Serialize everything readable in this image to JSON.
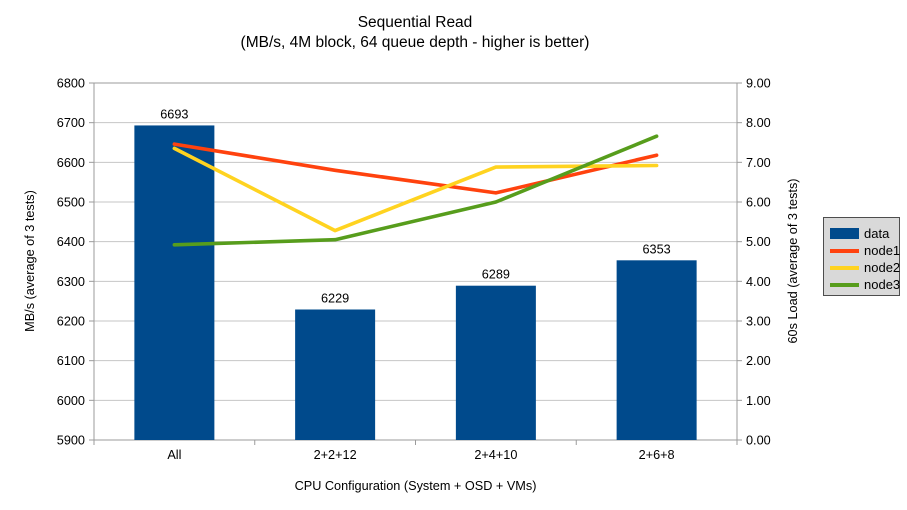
{
  "chart_data": {
    "type": "combo-bar-line",
    "title": "Sequential Read",
    "subtitle": "(MB/s, 4M block, 64 queue depth - higher is better)",
    "xlabel": "CPU Configuration (System + OSD + VMs)",
    "categories": [
      "All",
      "2+2+12",
      "2+4+10",
      "2+6+8"
    ],
    "left_axis": {
      "label": "MB/s (average of 3 tests)",
      "min": 5900,
      "max": 6800,
      "step": 100,
      "tick_labels": [
        "5900",
        "6000",
        "6100",
        "6200",
        "6300",
        "6400",
        "6500",
        "6600",
        "6700",
        "6800"
      ]
    },
    "right_axis": {
      "label": "60s Load (average of 3 tests)",
      "min": 0,
      "max": 9,
      "step": 1,
      "tick_labels": [
        "0.00",
        "1.00",
        "2.00",
        "3.00",
        "4.00",
        "5.00",
        "6.00",
        "7.00",
        "8.00",
        "9.00"
      ]
    },
    "bar_series": {
      "name": "data",
      "axis": "left",
      "color": "#004a8c",
      "values": [
        6693,
        6229,
        6289,
        6353
      ],
      "data_labels": [
        "6693",
        "6229",
        "6289",
        "6353"
      ]
    },
    "line_series": [
      {
        "name": "node1",
        "axis": "right",
        "color": "#ff420e",
        "values": [
          7.46,
          6.8,
          6.23,
          7.18
        ]
      },
      {
        "name": "node2",
        "axis": "right",
        "color": "#ffd320",
        "values": [
          7.35,
          5.28,
          6.88,
          6.92
        ]
      },
      {
        "name": "node3",
        "axis": "right",
        "color": "#579d1c",
        "values": [
          4.92,
          5.05,
          6.0,
          7.66
        ]
      }
    ],
    "legend": {
      "position": "right",
      "background": "#d9d9d9",
      "border_color": "#4d4d4d",
      "entries": [
        {
          "label": "data",
          "swatch": "box",
          "color": "#004a8c"
        },
        {
          "label": "node1",
          "swatch": "line",
          "color": "#ff420e"
        },
        {
          "label": "node2",
          "swatch": "line",
          "color": "#ffd320"
        },
        {
          "label": "node3",
          "swatch": "line",
          "color": "#579d1c"
        }
      ]
    },
    "grid": {
      "horizontal": true,
      "grid_color": "#c6c6c6",
      "axis_color": "#9b9b9b"
    }
  }
}
